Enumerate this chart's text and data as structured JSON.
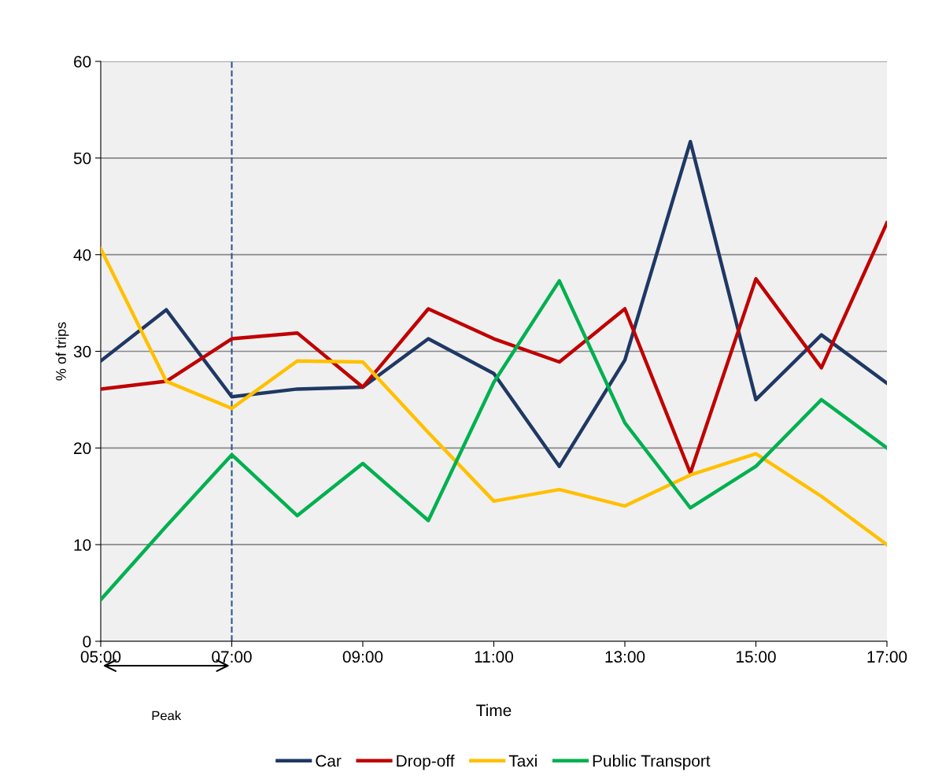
{
  "chart_data": {
    "type": "line",
    "xlabel": "Time",
    "ylabel": "% of trips",
    "x": [
      5,
      6,
      7,
      8,
      9,
      10,
      11,
      12,
      13,
      14,
      15,
      16,
      17
    ],
    "xlim": [
      5,
      17
    ],
    "xticks": [
      {
        "value": 5,
        "label": "05:00"
      },
      {
        "value": 7,
        "label": "07:00"
      },
      {
        "value": 9,
        "label": "09:00"
      },
      {
        "value": 11,
        "label": "11:00"
      },
      {
        "value": 13,
        "label": "13:00"
      },
      {
        "value": 15,
        "label": "15:00"
      },
      {
        "value": 17,
        "label": "17:00"
      }
    ],
    "ylim": [
      0,
      60
    ],
    "yticks": [
      0,
      10,
      20,
      30,
      40,
      50,
      60
    ],
    "grid": "y",
    "legend": "bottom",
    "marker": "none",
    "line_style": "solid",
    "series": [
      {
        "name": "Car",
        "color": "#1f3864",
        "values": [
          29.0,
          34.3,
          25.3,
          26.1,
          26.3,
          31.3,
          27.7,
          18.1,
          29.1,
          51.7,
          25.0,
          31.7,
          26.7
        ]
      },
      {
        "name": "Drop-off",
        "color": "#c00000",
        "values": [
          26.1,
          26.9,
          31.3,
          31.9,
          26.3,
          34.4,
          31.3,
          28.9,
          34.4,
          17.4,
          37.5,
          28.3,
          43.3
        ]
      },
      {
        "name": "Taxi",
        "color": "#ffc000",
        "values": [
          40.6,
          26.9,
          24.1,
          29.0,
          28.9,
          21.6,
          14.5,
          15.7,
          14.0,
          17.2,
          19.4,
          15.0,
          10.0
        ]
      },
      {
        "name": "Public Transport",
        "color": "#00b050",
        "values": [
          4.3,
          11.9,
          19.3,
          13.0,
          18.4,
          12.5,
          26.8,
          37.3,
          22.6,
          13.8,
          18.1,
          25.0,
          20.0
        ]
      }
    ],
    "ref_lines": [
      {
        "axis": "x",
        "value": 7,
        "color": "#2f5597",
        "line_style": "dashed"
      }
    ],
    "annotations": [
      "Peak"
    ]
  }
}
